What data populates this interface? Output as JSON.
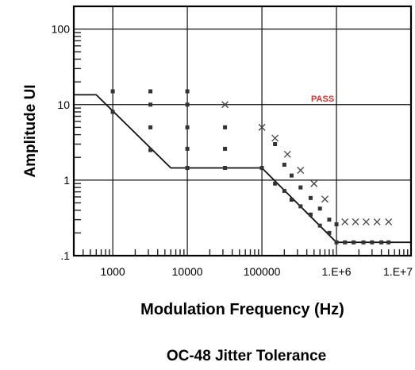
{
  "chart_data": {
    "type": "scatter",
    "title": "OC-48 Jitter Tolerance",
    "xlabel": "Modulation Frequency (Hz)",
    "ylabel": "Amplitude UI",
    "x_scale": "log",
    "y_scale": "log",
    "xlim": [
      300,
      10000000
    ],
    "ylim": [
      0.1,
      200
    ],
    "x_ticks": [
      {
        "value": 1000,
        "label": "1000"
      },
      {
        "value": 10000,
        "label": "10000"
      },
      {
        "value": 100000,
        "label": "100000"
      },
      {
        "value": 1000000,
        "label": "1.E+6"
      },
      {
        "value": 10000000,
        "label": "1.E+7"
      }
    ],
    "y_ticks": [
      {
        "value": 100,
        "label": "100"
      },
      {
        "value": 10,
        "label": "10"
      },
      {
        "value": 1,
        "label": "1"
      },
      {
        "value": 0.1,
        "label": ".1"
      }
    ],
    "grid": true,
    "annotation": {
      "text": "PASS",
      "x": 1000000,
      "y": 12,
      "color": "#e03030"
    },
    "mask": {
      "type": "line",
      "points": [
        [
          300,
          13.5
        ],
        [
          600,
          13.5
        ],
        [
          6000,
          1.45
        ],
        [
          100000,
          1.45
        ],
        [
          1000000,
          0.15
        ],
        [
          10000000,
          0.15
        ]
      ]
    },
    "square_markers": [
      [
        1000,
        15
      ],
      [
        1000,
        8
      ],
      [
        3200,
        15
      ],
      [
        3200,
        10
      ],
      [
        3200,
        5
      ],
      [
        3200,
        2.5
      ],
      [
        10000,
        15
      ],
      [
        10000,
        10
      ],
      [
        10000,
        5
      ],
      [
        10000,
        2.6
      ],
      [
        10000,
        1.45
      ],
      [
        32000,
        5
      ],
      [
        32000,
        2.6
      ],
      [
        32000,
        1.45
      ],
      [
        100000,
        1.45
      ],
      [
        150000,
        3.0
      ],
      [
        150000,
        0.9
      ],
      [
        200000,
        1.6
      ],
      [
        200000,
        0.72
      ],
      [
        250000,
        1.15
      ],
      [
        250000,
        0.55
      ],
      [
        330000,
        0.8
      ],
      [
        330000,
        0.45
      ],
      [
        450000,
        0.58
      ],
      [
        450000,
        0.35
      ],
      [
        600000,
        0.42
      ],
      [
        600000,
        0.25
      ],
      [
        800000,
        0.3
      ],
      [
        800000,
        0.2
      ],
      [
        1000000,
        0.26
      ],
      [
        1000000,
        0.15
      ],
      [
        1300000,
        0.15
      ],
      [
        1700000,
        0.15
      ],
      [
        2300000,
        0.15
      ],
      [
        3000000,
        0.15
      ],
      [
        4000000,
        0.15
      ],
      [
        5000000,
        0.15
      ]
    ],
    "x_markers": [
      [
        32000,
        10
      ],
      [
        100000,
        5
      ],
      [
        150000,
        3.6
      ],
      [
        220000,
        2.2
      ],
      [
        330000,
        1.35
      ],
      [
        500000,
        0.9
      ],
      [
        700000,
        0.56
      ],
      [
        1300000,
        0.28
      ],
      [
        1800000,
        0.28
      ],
      [
        2500000,
        0.28
      ],
      [
        3500000,
        0.28
      ],
      [
        5000000,
        0.28
      ]
    ]
  }
}
